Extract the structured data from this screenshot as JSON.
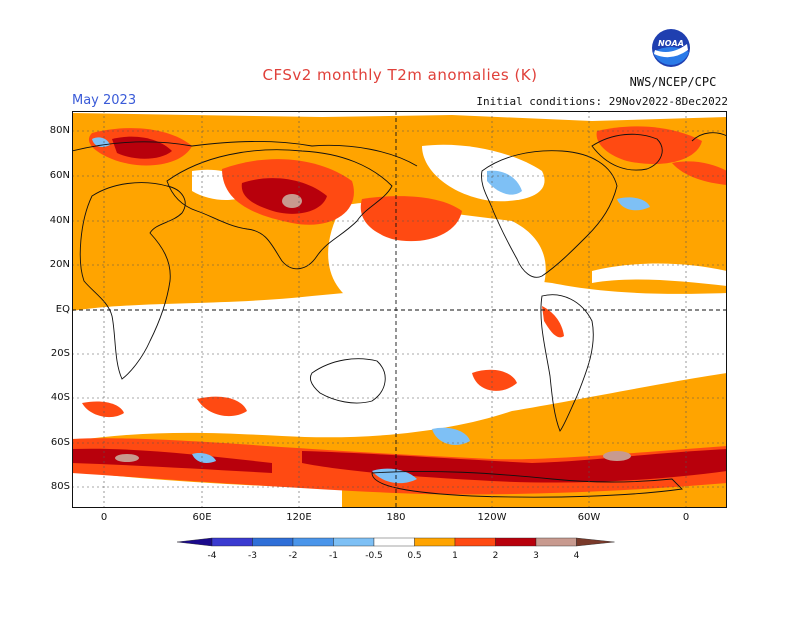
{
  "header": {
    "title": "CFSv2 monthly T2m anomalies (K)",
    "month": "May 2023",
    "initial_conditions": "Initial conditions: 29Nov2022-8Dec2022",
    "agency": "NWS/NCEP/CPC",
    "logo_text": "NOAA"
  },
  "axes": {
    "lat_labels": [
      "80N",
      "60N",
      "40N",
      "20N",
      "EQ",
      "20S",
      "40S",
      "60S",
      "80S"
    ],
    "lon_labels": [
      "0",
      "60E",
      "120E",
      "180",
      "120W",
      "60W",
      "0"
    ]
  },
  "colorbar": {
    "ticks": [
      "-4",
      "-3",
      "-2",
      "-1",
      "-0.5",
      "0.5",
      "1",
      "2",
      "3",
      "4"
    ],
    "colors": [
      "#1a0a8c",
      "#3a3ad0",
      "#2f6fd8",
      "#4a95ea",
      "#7ec0f5",
      "#ffffff",
      "#ffa400",
      "#ff4a12",
      "#b8000c",
      "#c89a8f",
      "#7a3a2a"
    ]
  },
  "palette": {
    "weak_warm": "#ffa400",
    "warm": "#ff4a12",
    "very_warm": "#b8000c",
    "extreme_warm": "#c89a8f",
    "weak_cold": "#7ec0f5",
    "cold": "#4a95ea",
    "title_color": "#e0403a",
    "month_color": "#3a5bd8"
  }
}
